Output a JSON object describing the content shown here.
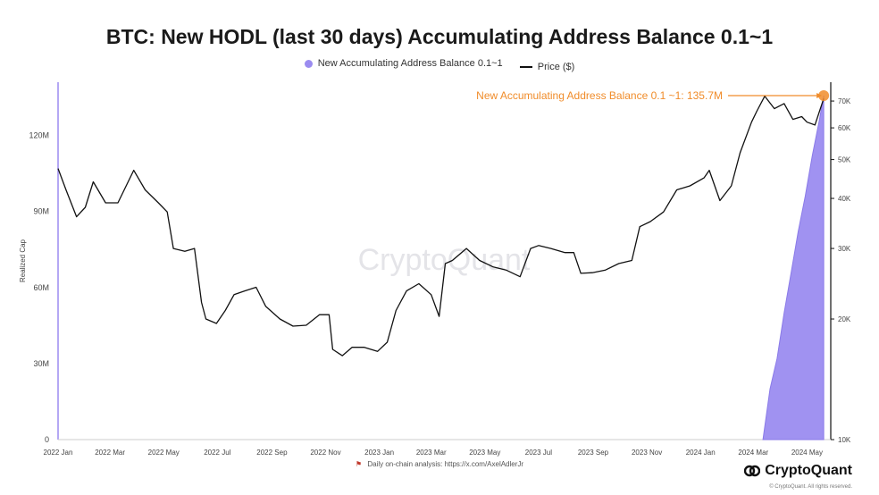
{
  "chart_data": {
    "type": "line",
    "title": "BTC: New HODL (last 30 days) Accumulating Address Balance 0.1~1",
    "ylabel": "Realized Cap",
    "xlabel": "",
    "x_ticks": [
      "2022 Jan",
      "2022 Mar",
      "2022 May",
      "2022 Jul",
      "2022 Sep",
      "2022 Nov",
      "2023 Jan",
      "2023 Mar",
      "2023 May",
      "2023 Jul",
      "2023 Sep",
      "2023 Nov",
      "2024 Jan",
      "2024 Mar",
      "2024 May"
    ],
    "y_left_ticks": [
      "0",
      "30M",
      "60M",
      "90M",
      "120M"
    ],
    "y_left_values": [
      0,
      30,
      60,
      90,
      120
    ],
    "y_left_range": [
      0,
      141
    ],
    "y_right_ticks": [
      "10K",
      "20K",
      "30K",
      "40K",
      "50K",
      "60K",
      "70K"
    ],
    "y_right_values": [
      10,
      20,
      30,
      40,
      50,
      60,
      70
    ],
    "y_right_scale": "log",
    "y_right_range": [
      10,
      78
    ],
    "grid": false,
    "legend_placement": "top-center",
    "series": [
      {
        "name": "New Accumulating Address Balance 0.1~1",
        "axis": "left",
        "color": "#9b8cf0",
        "x": [
          "2024-03-12",
          "2024-03-20",
          "2024-03-28",
          "2024-04-05",
          "2024-04-13",
          "2024-04-21",
          "2024-04-29",
          "2024-05-07",
          "2024-05-15",
          "2024-05-20"
        ],
        "values": [
          0,
          20,
          32,
          50,
          66,
          82,
          96,
          112,
          126,
          135.7
        ]
      },
      {
        "name": "Price ($)",
        "axis": "right",
        "color": "#111111",
        "x": [
          "2022-01-01",
          "2022-01-10",
          "2022-01-22",
          "2022-02-01",
          "2022-02-10",
          "2022-02-24",
          "2022-03-10",
          "2022-03-28",
          "2022-04-10",
          "2022-04-25",
          "2022-05-05",
          "2022-05-12",
          "2022-05-25",
          "2022-06-05",
          "2022-06-13",
          "2022-06-18",
          "2022-06-30",
          "2022-07-10",
          "2022-07-20",
          "2022-08-01",
          "2022-08-14",
          "2022-08-25",
          "2022-09-10",
          "2022-09-25",
          "2022-10-10",
          "2022-10-25",
          "2022-11-05",
          "2022-11-09",
          "2022-11-20",
          "2022-12-01",
          "2022-12-15",
          "2022-12-30",
          "2023-01-10",
          "2023-01-20",
          "2023-02-01",
          "2023-02-15",
          "2023-03-01",
          "2023-03-10",
          "2023-03-17",
          "2023-03-25",
          "2023-04-10",
          "2023-04-25",
          "2023-05-10",
          "2023-05-25",
          "2023-06-10",
          "2023-06-22",
          "2023-07-01",
          "2023-07-15",
          "2023-07-31",
          "2023-08-10",
          "2023-08-18",
          "2023-08-31",
          "2023-09-15",
          "2023-09-30",
          "2023-10-15",
          "2023-10-24",
          "2023-11-05",
          "2023-11-20",
          "2023-12-05",
          "2023-12-20",
          "2024-01-05",
          "2024-01-11",
          "2024-01-23",
          "2024-02-05",
          "2024-02-15",
          "2024-02-28",
          "2024-03-05",
          "2024-03-14",
          "2024-03-25",
          "2024-04-05",
          "2024-04-15",
          "2024-04-25",
          "2024-05-01",
          "2024-05-10",
          "2024-05-20"
        ],
        "values": [
          47.5,
          42,
          36,
          38,
          44,
          39,
          39,
          47,
          42,
          39,
          37,
          30,
          29.5,
          30,
          22,
          20,
          19.5,
          21,
          23,
          23.5,
          24,
          21.5,
          20,
          19.2,
          19.3,
          20.5,
          20.5,
          16.8,
          16.2,
          17,
          17,
          16.6,
          17.5,
          21,
          23.5,
          24.5,
          23,
          20.3,
          27.5,
          28,
          30,
          28,
          27,
          26.5,
          25.5,
          30,
          30.5,
          30,
          29.3,
          29.3,
          26,
          26.1,
          26.5,
          27.5,
          28,
          34,
          35,
          37,
          42,
          43,
          45,
          47,
          39.5,
          43,
          52,
          62,
          66,
          72,
          67,
          69,
          63,
          64,
          62,
          61,
          71
        ]
      }
    ],
    "annotation": "New Accumulating Address Balance 0.1 ~1: 135.7M",
    "annotation_color": "#f08c2a",
    "watermark": "CryptoQuant",
    "source": "Daily on-chain analysis: https://x.com/AxelAdlerJr",
    "brand": "CryptoQuant",
    "copyright": "© CryptoQuant. All rights reserved."
  }
}
